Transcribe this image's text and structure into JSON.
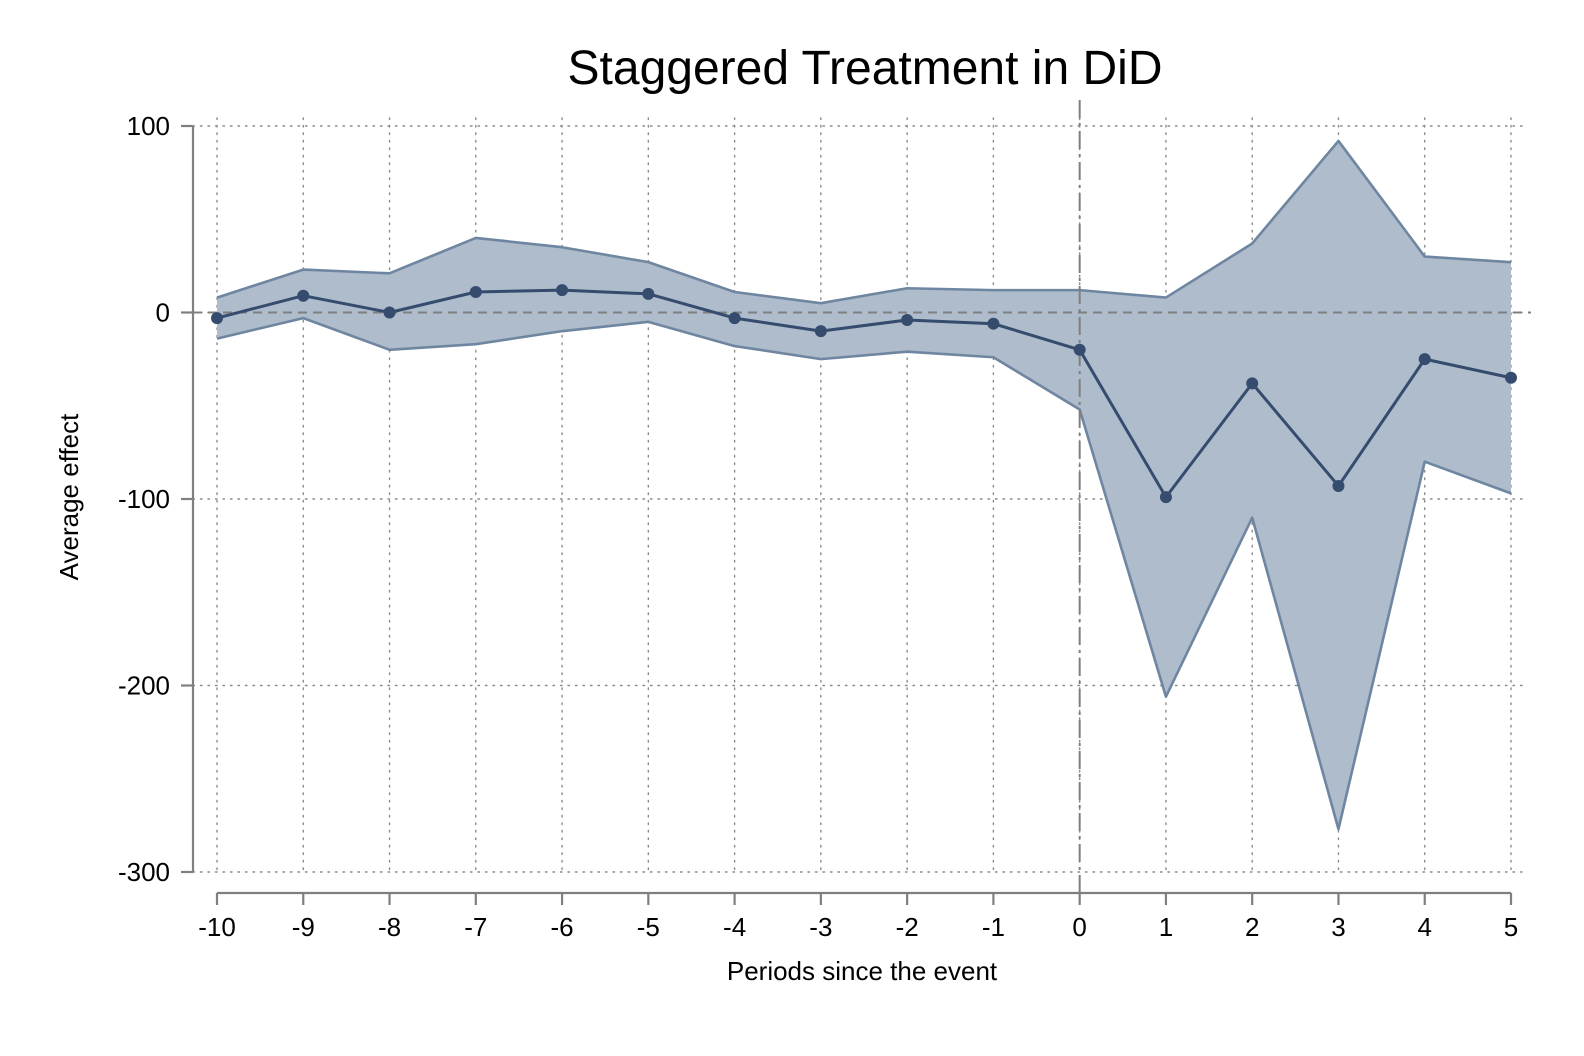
{
  "chart_data": {
    "type": "line",
    "title": "Staggered Treatment in DiD",
    "xlabel": "Periods since the event",
    "ylabel": "Average effect",
    "x": [
      -10,
      -9,
      -8,
      -7,
      -6,
      -5,
      -4,
      -3,
      -2,
      -1,
      0,
      1,
      2,
      3,
      4,
      5
    ],
    "xticks": [
      "-10",
      "-9",
      "-8",
      "-7",
      "-6",
      "-5",
      "-4",
      "-3",
      "-2",
      "-1",
      "0",
      "1",
      "2",
      "3",
      "4",
      "5"
    ],
    "yticks": [
      100,
      0,
      -100,
      -200,
      -300
    ],
    "xlim": [
      -10,
      5
    ],
    "ylim": [
      -300,
      100
    ],
    "grid": "dotted",
    "reference_lines": {
      "horizontal_y": 0,
      "vertical_x": 0
    },
    "series": [
      {
        "type": "line-markers",
        "values": [
          -3,
          9,
          0,
          11,
          12,
          10,
          -3,
          -10,
          -4,
          -6,
          -20,
          -99,
          -38,
          -93,
          -25,
          -35
        ]
      },
      {
        "type": "ci-band",
        "lower": [
          -14,
          -3,
          -20,
          -17,
          -10,
          -5,
          -18,
          -25,
          -21,
          -24,
          -52,
          -206,
          -110,
          -277,
          -80,
          -97
        ],
        "upper": [
          8,
          23,
          21,
          40,
          35,
          27,
          11,
          5,
          13,
          12,
          12,
          8,
          37,
          92,
          30,
          27
        ]
      }
    ],
    "colors": {
      "line": "#354c6e",
      "band_fill": "#aebccb",
      "band_edge": "#6f86a1",
      "axis": "#7f7f7f",
      "grid": "#8a8a8a",
      "ref_line": "#7f7f7f"
    }
  }
}
